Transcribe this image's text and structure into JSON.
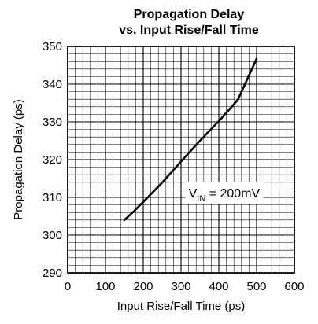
{
  "chart_data": {
    "type": "line",
    "title": "Propagation Delay",
    "subtitle": "vs. Input Rise/Fall Time",
    "xlabel": "Input Rise/Fall Time (ps)",
    "ylabel": "Propagation Delay (ps)",
    "xlim": [
      0,
      600
    ],
    "ylim": [
      290,
      350
    ],
    "x_ticks": [
      0,
      100,
      200,
      300,
      400,
      500,
      600
    ],
    "y_ticks": [
      290,
      300,
      310,
      320,
      330,
      340,
      350
    ],
    "x_tick_labels": [
      "0",
      "100",
      "200",
      "300",
      "400",
      "500",
      "600"
    ],
    "y_tick_labels": [
      "290",
      "300",
      "310",
      "320",
      "330",
      "340",
      "350"
    ],
    "grid": true,
    "grid_minor_x_step": 20,
    "grid_minor_y_step": 2,
    "series": [
      {
        "x": [
          150,
          175,
          200,
          250,
          300,
          350,
          400,
          450,
          500
        ],
        "y": [
          304.0,
          306.3,
          308.8,
          313.9,
          319.5,
          325.0,
          330.2,
          335.8,
          346.7
        ],
        "color": "#000000"
      }
    ],
    "annotation": {
      "main": "V",
      "subscript": "IN",
      "rest": " = 200mV",
      "x": 320,
      "y": 310
    }
  }
}
